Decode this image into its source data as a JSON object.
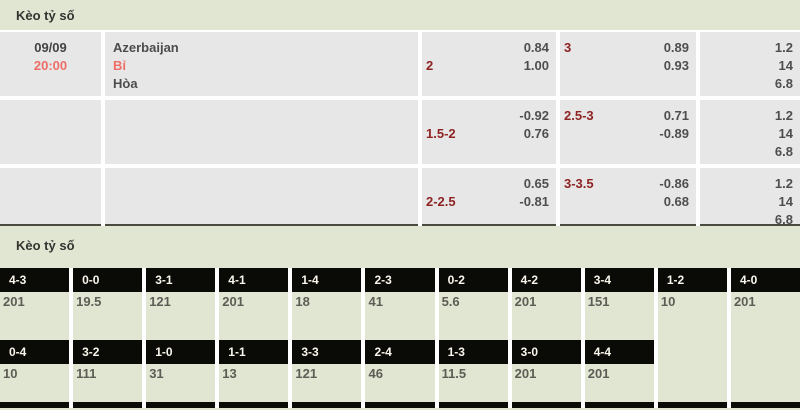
{
  "colors": {
    "background": "#e1e6d3",
    "cell_gray": "#e7e7e7",
    "score_cell": "#0a0a07",
    "accent_red": "#ee6e67",
    "handicap_maroon": "#8e2424"
  },
  "section1": {
    "title": "Kèo tỷ số",
    "match": {
      "date": "09/09",
      "time": "20:00",
      "home_team": "Azerbaijan",
      "away_team": "Bỉ",
      "draw_label": "Hòa"
    },
    "rows": [
      {
        "hcp_label": "2",
        "hcp_v1": "0.84",
        "hcp_v2": "1.00",
        "tot_label": "3",
        "tot_v1": "0.89",
        "tot_v2": "0.93",
        "extra": [
          "1.2",
          "14",
          "6.8"
        ]
      },
      {
        "hcp_label": "1.5-2",
        "hcp_v1": "-0.92",
        "hcp_v2": "0.76",
        "tot_label": "2.5-3",
        "tot_v1": "0.71",
        "tot_v2": "-0.89",
        "extra": [
          "1.2",
          "14",
          "6.8"
        ]
      },
      {
        "hcp_label": "2-2.5",
        "hcp_v1": "0.65",
        "hcp_v2": "-0.81",
        "tot_label": "3-3.5",
        "tot_v1": "-0.86",
        "tot_v2": "0.68",
        "extra": [
          "1.2",
          "14",
          "6.8"
        ]
      }
    ]
  },
  "section2": {
    "title": "Kèo tỷ số",
    "row1": [
      {
        "score": "4-3",
        "odds": "201"
      },
      {
        "score": "0-0",
        "odds": "19.5"
      },
      {
        "score": "3-1",
        "odds": "121"
      },
      {
        "score": "4-1",
        "odds": "201"
      },
      {
        "score": "1-4",
        "odds": "18"
      },
      {
        "score": "2-3",
        "odds": "41"
      },
      {
        "score": "0-2",
        "odds": "5.6"
      },
      {
        "score": "4-2",
        "odds": "201"
      },
      {
        "score": "3-4",
        "odds": "151"
      },
      {
        "score": "1-2",
        "odds": "10"
      },
      {
        "score": "4-0",
        "odds": "201"
      }
    ],
    "row2": [
      {
        "score": "0-4",
        "odds": "10"
      },
      {
        "score": "3-2",
        "odds": "111"
      },
      {
        "score": "1-0",
        "odds": "31"
      },
      {
        "score": "1-1",
        "odds": "13"
      },
      {
        "score": "3-3",
        "odds": "121"
      },
      {
        "score": "2-4",
        "odds": "46"
      },
      {
        "score": "1-3",
        "odds": "11.5"
      },
      {
        "score": "3-0",
        "odds": "201"
      },
      {
        "score": "4-4",
        "odds": "201"
      }
    ]
  }
}
